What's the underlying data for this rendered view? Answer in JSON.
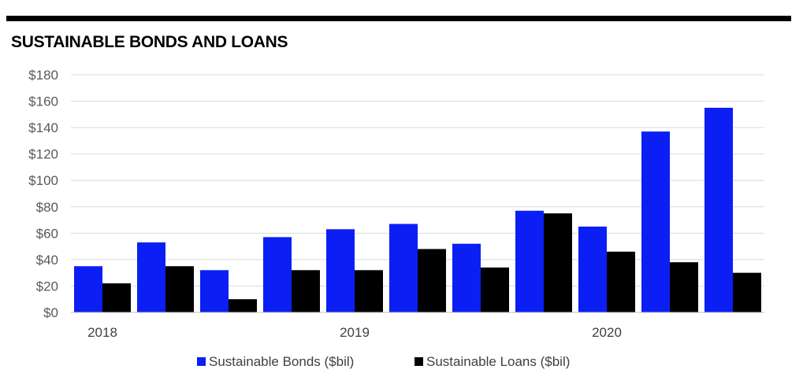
{
  "chart_data": {
    "type": "bar",
    "title": "SUSTAINABLE BONDS AND LOANS",
    "categories": [
      "",
      "",
      "",
      "",
      "",
      "",
      "",
      "",
      "",
      "",
      ""
    ],
    "x_group_labels": [
      "2018",
      "2019",
      "2020"
    ],
    "series": [
      {
        "name": "Sustainable Bonds ($bil)",
        "color": "#0b1ff5",
        "values": [
          35,
          53,
          32,
          57,
          63,
          67,
          52,
          77,
          65,
          137,
          155
        ]
      },
      {
        "name": "Sustainable Loans ($bil)",
        "color": "#000000",
        "values": [
          22,
          35,
          10,
          32,
          32,
          48,
          34,
          75,
          46,
          38,
          30
        ]
      }
    ],
    "y_ticks": [
      "$0",
      "$20",
      "$40",
      "$60",
      "$80",
      "$100",
      "$120",
      "$140",
      "$160",
      "$180"
    ],
    "ylim": [
      0,
      180
    ],
    "grid": true,
    "legend_position": "bottom"
  }
}
